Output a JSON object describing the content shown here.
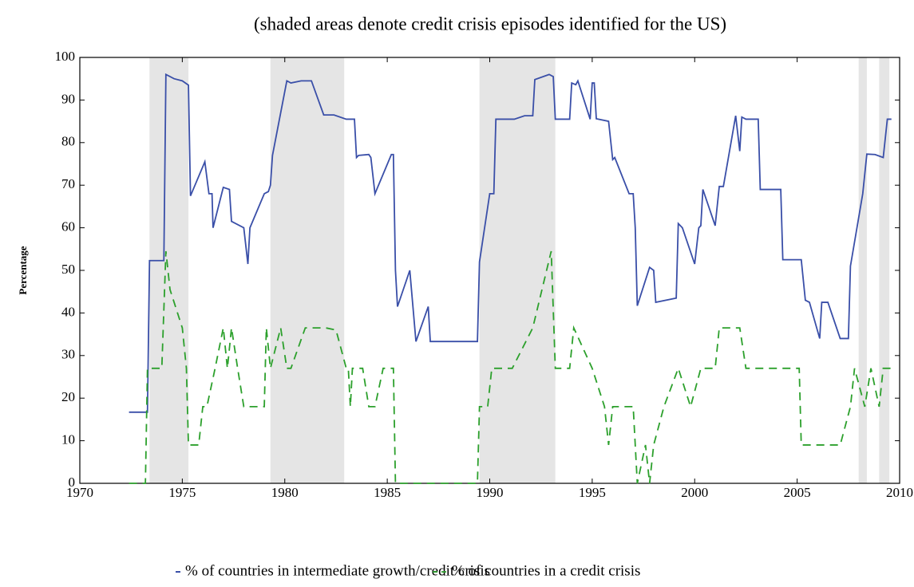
{
  "chart_data": {
    "type": "line",
    "title": "(shaded areas denote credit crisis episodes identified for the US)",
    "y_label": "Percentage",
    "shaded_periods": [
      [
        1973.4,
        1975.3
      ],
      [
        1979.3,
        1982.9
      ],
      [
        1989.5,
        1993.2
      ],
      [
        2008.0,
        2008.4
      ],
      [
        2009.0,
        2009.5
      ]
    ],
    "shade_color": "#e5e5e5",
    "xlim": [
      1970,
      2010
    ],
    "xticks": [
      1970,
      1975,
      1980,
      1985,
      1990,
      1995,
      2000,
      2005,
      2010
    ],
    "ylim": [
      0,
      100
    ],
    "yticks": [
      0,
      10,
      20,
      30,
      40,
      50,
      60,
      70,
      80,
      90,
      100
    ],
    "series": [
      {
        "name": "% of countries in intermediate growth/credit crisis",
        "color": "#3a4fa8",
        "dash": "solid",
        "x": [
          1972.4,
          1973.3,
          1973.4,
          1974.1,
          1974.2,
          1974.6,
          1975.0,
          1975.3,
          1975.4,
          1976.1,
          1976.3,
          1976.45,
          1976.5,
          1977.0,
          1977.3,
          1977.4,
          1978.0,
          1978.2,
          1978.3,
          1979.0,
          1979.2,
          1979.3,
          1979.4,
          1980.1,
          1980.3,
          1980.8,
          1981.3,
          1981.9,
          1982.4,
          1983.0,
          1983.4,
          1983.5,
          1983.6,
          1984.1,
          1984.2,
          1984.4,
          1985.2,
          1985.3,
          1985.4,
          1985.5,
          1986.1,
          1986.4,
          1987.0,
          1987.1,
          1989.4,
          1989.5,
          1990.0,
          1990.2,
          1990.3,
          1991.2,
          1991.7,
          1992.1,
          1992.2,
          1992.9,
          1993.1,
          1993.2,
          1993.9,
          1994.0,
          1994.2,
          1994.3,
          1994.9,
          1995.0,
          1995.1,
          1995.2,
          1995.8,
          1996.0,
          1996.1,
          1996.8,
          1997.0,
          1997.1,
          1997.2,
          1997.8,
          1998.0,
          1998.1,
          1999.1,
          1999.2,
          1999.4,
          2000.0,
          2000.2,
          2000.3,
          2000.4,
          2001.0,
          2001.2,
          2001.4,
          2002.0,
          2002.2,
          2002.3,
          2002.5,
          2003.1,
          2003.2,
          2004.2,
          2004.3,
          2005.2,
          2005.4,
          2005.6,
          2006.1,
          2006.2,
          2006.5,
          2007.1,
          2007.5,
          2007.6,
          2008.2,
          2008.4,
          2008.8,
          2009.2,
          2009.4,
          2009.6
        ],
        "values": [
          16.7,
          16.7,
          52.3,
          52.3,
          96,
          95,
          94.5,
          93.5,
          67.5,
          75.5,
          68,
          68,
          60,
          69.5,
          69,
          61.5,
          60,
          51.5,
          60,
          68,
          68.5,
          70,
          77,
          94.5,
          94,
          94.5,
          94.5,
          86.5,
          86.5,
          85.5,
          85.5,
          76.5,
          77,
          77.2,
          76.5,
          68,
          77.2,
          77.2,
          50,
          41.5,
          50,
          33.3,
          41.5,
          33.3,
          33.3,
          52,
          68,
          68,
          85.5,
          85.5,
          86.3,
          86.3,
          94.8,
          96,
          95.5,
          85.5,
          85.5,
          94,
          93.6,
          94.5,
          85.5,
          94,
          94,
          85.6,
          85,
          76,
          76.5,
          68,
          68,
          60,
          41.7,
          50.7,
          50,
          42.5,
          43.5,
          61,
          60,
          51.5,
          60,
          60.5,
          69,
          60.5,
          69.7,
          69.7,
          86.3,
          78,
          86,
          85.5,
          85.5,
          69,
          69,
          52.5,
          52.5,
          43,
          42.5,
          34,
          42.5,
          42.5,
          34,
          34,
          51,
          68,
          77.3,
          77.2,
          76.5,
          85.5,
          85.5
        ]
      },
      {
        "name": "% of countries in a credit crisis",
        "color": "#2ca02c",
        "dash": "dashed",
        "x": [
          1972.4,
          1973.2,
          1973.3,
          1974.0,
          1974.2,
          1974.4,
          1974.7,
          1975.0,
          1975.2,
          1975.3,
          1975.8,
          1976.0,
          1976.2,
          1976.6,
          1977.0,
          1977.2,
          1977.4,
          1977.7,
          1978.0,
          1979.0,
          1979.1,
          1979.3,
          1979.8,
          1980.1,
          1980.3,
          1981.0,
          1982.0,
          1982.5,
          1983.0,
          1983.1,
          1983.2,
          1983.3,
          1983.8,
          1984.1,
          1984.4,
          1984.8,
          1985.3,
          1985.4,
          1989.4,
          1989.5,
          1989.9,
          1990.1,
          1991.1,
          1992.1,
          1993.0,
          1993.2,
          1993.9,
          1994.1,
          1995.0,
          1995.6,
          1995.8,
          1996.0,
          1997.0,
          1997.2,
          1997.6,
          1997.8,
          1998.0,
          1998.5,
          1999.2,
          1999.8,
          2000.3,
          2001.0,
          2001.2,
          2002.2,
          2002.5,
          2005.1,
          2005.2,
          2007.1,
          2007.6,
          2007.8,
          2008.3,
          2008.6,
          2009.0,
          2009.2,
          2009.6
        ],
        "values": [
          0,
          0,
          27,
          27,
          54.5,
          45.5,
          41,
          36.5,
          27,
          9,
          9,
          18,
          18,
          27,
          36.5,
          27,
          36.5,
          27,
          18,
          18,
          36.5,
          27,
          36.5,
          27,
          27,
          36.5,
          36.5,
          36,
          27,
          27,
          18,
          27,
          27,
          18,
          18,
          27,
          27,
          0,
          0,
          18,
          18,
          27,
          27,
          36.5,
          54.5,
          27,
          27,
          36.5,
          27,
          18,
          9,
          18,
          18,
          0,
          9,
          0,
          9,
          18,
          27,
          18,
          27,
          27,
          36.5,
          36.5,
          27,
          27,
          9,
          9,
          18,
          27,
          18,
          27,
          18,
          27,
          27
        ]
      }
    ]
  }
}
